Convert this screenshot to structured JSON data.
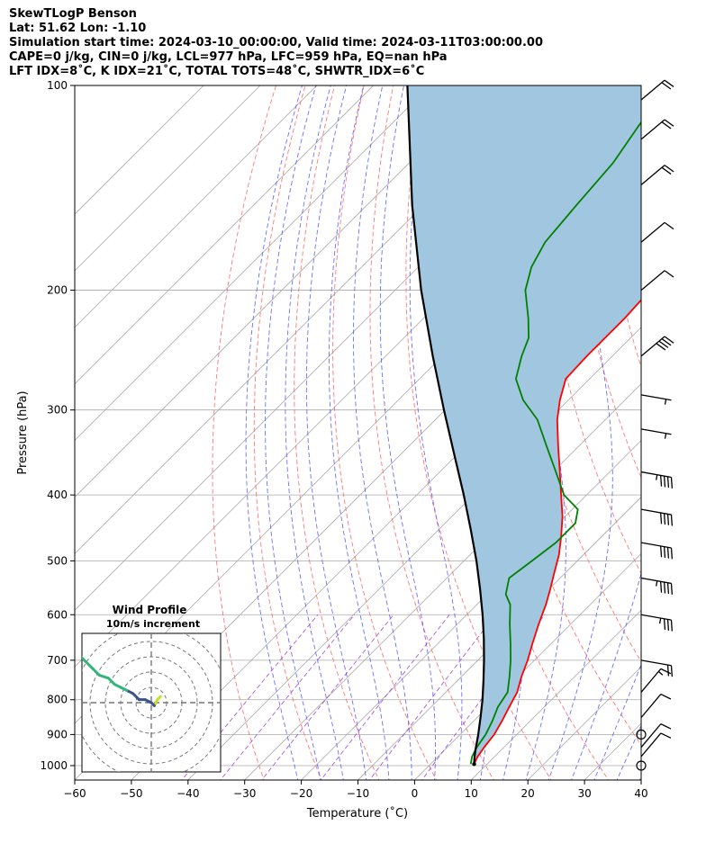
{
  "header": {
    "line1": "SkewTLogP Benson",
    "line2": "Lat: 51.62   Lon: -1.10",
    "line3": "Simulation start time: 2024-03-10_00:00:00, Valid time: 2024-03-11T03:00:00.00",
    "line4": "CAPE=0 j/kg, CIN=0 j/kg, LCL=977 hPa, LFC=959 hPa, EQ=nan hPa",
    "line5": "LFT IDX=8˚C, K IDX=21˚C, TOTAL TOTS=48˚C, SHWTR_IDX=6˚C"
  },
  "chart_data": {
    "type": "line",
    "xlabel": "Temperature (˚C)",
    "ylabel": "Pressure (hPa)",
    "xlim": [
      -60,
      40
    ],
    "ylim": [
      1050,
      100
    ],
    "y_scale": "log",
    "skew": true,
    "x_ticks": [
      -60,
      -50,
      -40,
      -30,
      -20,
      -10,
      0,
      10,
      20,
      30,
      40
    ],
    "y_ticks": [
      100,
      200,
      300,
      400,
      500,
      600,
      700,
      800,
      900,
      1000
    ],
    "grid": true,
    "colors": {
      "temperature": "#ff0000",
      "dewpoint": "#008000",
      "parcel": "#000000",
      "shade": "#a1c6e0",
      "dry_adiabat": "#ff6060",
      "moist_adiabat": "#5555ff",
      "mixing_ratio": "#9933cc",
      "isotherm": "#aaaaaa"
    },
    "series": [
      {
        "key": "temperature",
        "pressure": [
          995,
          970,
          940,
          900,
          860,
          820,
          780,
          740,
          700,
          660,
          620,
          580,
          550,
          520,
          490,
          460,
          430,
          400,
          370,
          340,
          310,
          290,
          270,
          250,
          235,
          220,
          200,
          185,
          170,
          160,
          150,
          135,
          120,
          110,
          100
        ],
        "temp": [
          7.7,
          7.0,
          6.5,
          6.0,
          5.0,
          3.8,
          2.6,
          0.6,
          -1.2,
          -3.4,
          -5.6,
          -7.8,
          -9.8,
          -12.0,
          -14.3,
          -17.2,
          -20.5,
          -24.5,
          -28.8,
          -33.5,
          -38.5,
          -41.5,
          -44.2,
          -44.5,
          -44.5,
          -44.5,
          -45.0,
          -45.2,
          -45.5,
          -45.5,
          -45.8,
          -46.5,
          -47.5,
          -48.5,
          -49.0
        ]
      },
      {
        "key": "dewpoint",
        "pressure": [
          995,
          970,
          940,
          900,
          860,
          820,
          780,
          740,
          700,
          660,
          620,
          580,
          560,
          530,
          500,
          470,
          440,
          420,
          400,
          370,
          340,
          310,
          290,
          270,
          250,
          235,
          220,
          200,
          185,
          170,
          150,
          130,
          115,
          100
        ],
        "temp": [
          7.1,
          6.0,
          5.2,
          4.5,
          3.3,
          1.8,
          0.9,
          -1.5,
          -4.2,
          -7.3,
          -10.7,
          -14.1,
          -16.7,
          -19.0,
          -18.0,
          -17.0,
          -17.0,
          -19.0,
          -24.0,
          -29.5,
          -35.5,
          -42.0,
          -48.0,
          -53.0,
          -56.0,
          -58.0,
          -61.5,
          -67.0,
          -70.0,
          -72.0,
          -73.0,
          -74.0,
          -76.0,
          -78.0
        ]
      },
      {
        "key": "parcel",
        "pressure": [
          995,
          977,
          950,
          900,
          850,
          800,
          750,
          700,
          650,
          600,
          550,
          500,
          450,
          400,
          350,
          300,
          250,
          200,
          150,
          100
        ],
        "temp": [
          7.7,
          6.8,
          5.5,
          3.2,
          0.6,
          -2.2,
          -5.4,
          -8.9,
          -12.8,
          -17.2,
          -22.2,
          -27.8,
          -34.3,
          -41.7,
          -50.3,
          -60.2,
          -71.7,
          -85.4,
          -102.0,
          -124.0
        ]
      }
    ],
    "barbs": [
      {
        "pressure": 1000,
        "speed_kt": 0
      },
      {
        "pressure": 970,
        "speed_kt": 10
      },
      {
        "pressure": 940,
        "speed_kt": 10
      },
      {
        "pressure": 900,
        "speed_kt": 0
      },
      {
        "pressure": 850,
        "speed_kt": 10
      },
      {
        "pressure": 780,
        "speed_kt": 15
      },
      {
        "pressure": 700,
        "speed_kt": 20
      },
      {
        "pressure": 600,
        "speed_kt": 35
      },
      {
        "pressure": 530,
        "speed_kt": 45
      },
      {
        "pressure": 470,
        "speed_kt": 40
      },
      {
        "pressure": 420,
        "speed_kt": 40
      },
      {
        "pressure": 370,
        "speed_kt": 45
      },
      {
        "pressure": 320,
        "speed_kt": 55
      },
      {
        "pressure": 285,
        "speed_kt": 55
      },
      {
        "pressure": 250,
        "speed_kt": 40
      },
      {
        "pressure": 200,
        "speed_kt": 10
      },
      {
        "pressure": 170,
        "speed_kt": 10
      },
      {
        "pressure": 140,
        "speed_kt": 20
      },
      {
        "pressure": 120,
        "speed_kt": 20
      },
      {
        "pressure": 105,
        "speed_kt": 20
      }
    ],
    "hodograph": {
      "title": "Wind Profile",
      "subtitle": "10m/s increment",
      "ring_increment_ms": 10,
      "u": [
        6,
        4,
        2,
        0,
        -2,
        -4,
        -8,
        -12,
        -16,
        -20,
        -24,
        -28,
        -34,
        -40,
        -46,
        -52
      ],
      "v": [
        4,
        2,
        -2,
        0,
        1,
        2,
        2,
        6,
        8,
        10,
        12,
        16,
        18,
        24,
        30,
        34
      ],
      "start_color": "#c5df24",
      "end_color": "#31b57a",
      "mid_color": "#3b528b"
    }
  }
}
